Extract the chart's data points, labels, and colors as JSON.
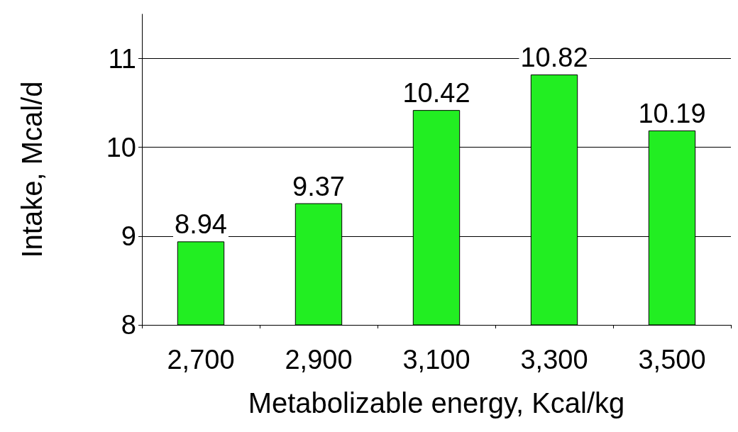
{
  "chart_data": {
    "type": "bar",
    "xlabel": "Metabolizable energy, Kcal/kg",
    "ylabel": "Intake, Mcal/d",
    "categories": [
      "2,700",
      "2,900",
      "3,100",
      "3,300",
      "3,500"
    ],
    "values": [
      8.94,
      9.37,
      10.42,
      10.82,
      10.19
    ],
    "color": "#22ee22",
    "ylim": [
      8,
      11.5
    ],
    "yticks": [
      8,
      9,
      10,
      11
    ],
    "grid": "y",
    "data_labels": true
  }
}
